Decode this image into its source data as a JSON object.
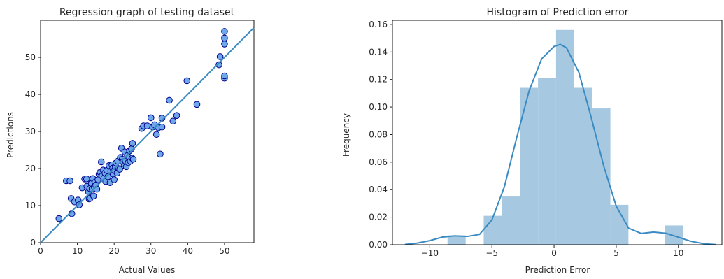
{
  "chart_data": [
    {
      "type": "scatter",
      "title": "Regression graph of testing dataset",
      "xlabel": "Actual Values",
      "ylabel": "Predictions",
      "xlim": [
        0,
        58
      ],
      "ylim": [
        0,
        60
      ],
      "xticks": [
        0,
        10,
        20,
        30,
        40,
        50
      ],
      "yticks": [
        0,
        10,
        20,
        30,
        40,
        50
      ],
      "point_color": "#6fa8ea",
      "point_edge_color": "#00008b",
      "line_color": "#3a8bc2",
      "reference_line": [
        [
          0,
          0
        ],
        [
          58,
          58
        ]
      ],
      "points": [
        [
          5.0,
          6.5
        ],
        [
          7.0,
          16.7
        ],
        [
          8.0,
          16.7
        ],
        [
          8.3,
          11.9
        ],
        [
          8.5,
          7.8
        ],
        [
          9.2,
          11.0
        ],
        [
          10.2,
          11.5
        ],
        [
          10.5,
          10.2
        ],
        [
          11.3,
          14.8
        ],
        [
          12.0,
          17.2
        ],
        [
          12.5,
          17.2
        ],
        [
          12.6,
          15.2
        ],
        [
          13.0,
          13.7
        ],
        [
          13.2,
          11.8
        ],
        [
          13.4,
          14.6
        ],
        [
          13.5,
          12.0
        ],
        [
          13.8,
          16.0
        ],
        [
          14.0,
          14.5
        ],
        [
          14.2,
          17.3
        ],
        [
          14.4,
          12.6
        ],
        [
          14.6,
          15.0
        ],
        [
          14.8,
          16.3
        ],
        [
          15.0,
          15.5
        ],
        [
          15.3,
          14.4
        ],
        [
          15.6,
          17.0
        ],
        [
          15.9,
          18.5
        ],
        [
          16.2,
          19.0
        ],
        [
          16.5,
          21.8
        ],
        [
          16.7,
          18.0
        ],
        [
          17.0,
          19.6
        ],
        [
          17.2,
          17.4
        ],
        [
          17.5,
          18.8
        ],
        [
          17.7,
          16.5
        ],
        [
          18.0,
          19.5
        ],
        [
          18.3,
          17.8
        ],
        [
          18.6,
          20.8
        ],
        [
          18.9,
          16.2
        ],
        [
          19.1,
          19.3
        ],
        [
          19.4,
          21.0
        ],
        [
          19.6,
          20.1
        ],
        [
          19.8,
          18.5
        ],
        [
          20.0,
          17.0
        ],
        [
          20.0,
          19.5
        ],
        [
          20.3,
          20.6
        ],
        [
          20.5,
          21.5
        ],
        [
          20.8,
          18.8
        ],
        [
          21.0,
          22.0
        ],
        [
          21.2,
          20.0
        ],
        [
          21.5,
          19.8
        ],
        [
          21.7,
          23.0
        ],
        [
          22.0,
          25.5
        ],
        [
          22.2,
          22.5
        ],
        [
          22.4,
          21.8
        ],
        [
          22.7,
          20.8
        ],
        [
          22.9,
          24.5
        ],
        [
          23.1,
          22.0
        ],
        [
          23.3,
          20.5
        ],
        [
          23.6,
          23.5
        ],
        [
          23.8,
          21.6
        ],
        [
          24.0,
          23.0
        ],
        [
          24.2,
          24.8
        ],
        [
          24.4,
          22.0
        ],
        [
          24.7,
          25.3
        ],
        [
          24.9,
          22.8
        ],
        [
          25.0,
          26.8
        ],
        [
          25.2,
          22.5
        ],
        [
          27.5,
          30.8
        ],
        [
          28.0,
          31.5
        ],
        [
          29.0,
          31.5
        ],
        [
          30.0,
          33.7
        ],
        [
          30.5,
          31.2
        ],
        [
          31.0,
          31.8
        ],
        [
          31.5,
          29.2
        ],
        [
          32.0,
          31.0
        ],
        [
          32.5,
          23.9
        ],
        [
          33.0,
          33.6
        ],
        [
          33.0,
          31.2
        ],
        [
          35.0,
          38.4
        ],
        [
          36.0,
          32.8
        ],
        [
          37.0,
          34.3
        ],
        [
          39.8,
          43.7
        ],
        [
          42.5,
          37.3
        ],
        [
          48.5,
          48.0
        ],
        [
          48.8,
          50.2
        ],
        [
          50.0,
          53.6
        ],
        [
          50.0,
          55.2
        ],
        [
          50.0,
          57.0
        ],
        [
          50.0,
          44.4
        ],
        [
          50.0,
          45.0
        ]
      ]
    },
    {
      "type": "histogram",
      "title": "Histogram of Prediction error",
      "xlabel": "Prediction Error",
      "ylabel": "Frequency",
      "xlim": [
        -13,
        13.5
      ],
      "ylim": [
        0,
        0.163
      ],
      "xticks": [
        -10,
        -5,
        0,
        5,
        10
      ],
      "yticks": [
        0.0,
        0.02,
        0.04,
        0.06,
        0.08,
        0.1,
        0.12,
        0.14,
        0.16
      ],
      "bar_color": "#a6c8e0",
      "kde_color": "#3a8bc2",
      "bin_edges": [
        -8.57,
        -7.11,
        -5.66,
        -4.2,
        -2.75,
        -1.29,
        0.16,
        1.62,
        3.07,
        4.53,
        5.98,
        7.44,
        8.89,
        10.35
      ],
      "frequencies": [
        0.0068,
        0.0,
        0.021,
        0.035,
        0.114,
        0.121,
        0.156,
        0.114,
        0.099,
        0.029,
        0.0,
        0.0,
        0.014
      ],
      "kde": [
        [
          -12.0,
          0.0002
        ],
        [
          -11.0,
          0.0012
        ],
        [
          -10.0,
          0.003
        ],
        [
          -9.0,
          0.0055
        ],
        [
          -8.0,
          0.0065
        ],
        [
          -7.0,
          0.006
        ],
        [
          -6.0,
          0.0075
        ],
        [
          -5.0,
          0.018
        ],
        [
          -4.0,
          0.042
        ],
        [
          -3.0,
          0.078
        ],
        [
          -2.0,
          0.112
        ],
        [
          -1.0,
          0.135
        ],
        [
          0.0,
          0.144
        ],
        [
          0.5,
          0.1455
        ],
        [
          1.0,
          0.143
        ],
        [
          2.0,
          0.125
        ],
        [
          3.0,
          0.092
        ],
        [
          4.0,
          0.057
        ],
        [
          5.0,
          0.028
        ],
        [
          6.0,
          0.012
        ],
        [
          7.0,
          0.0082
        ],
        [
          8.0,
          0.0092
        ],
        [
          9.0,
          0.0083
        ],
        [
          10.0,
          0.0055
        ],
        [
          11.0,
          0.0025
        ],
        [
          12.0,
          0.0008
        ],
        [
          13.0,
          0.0001
        ]
      ]
    }
  ]
}
